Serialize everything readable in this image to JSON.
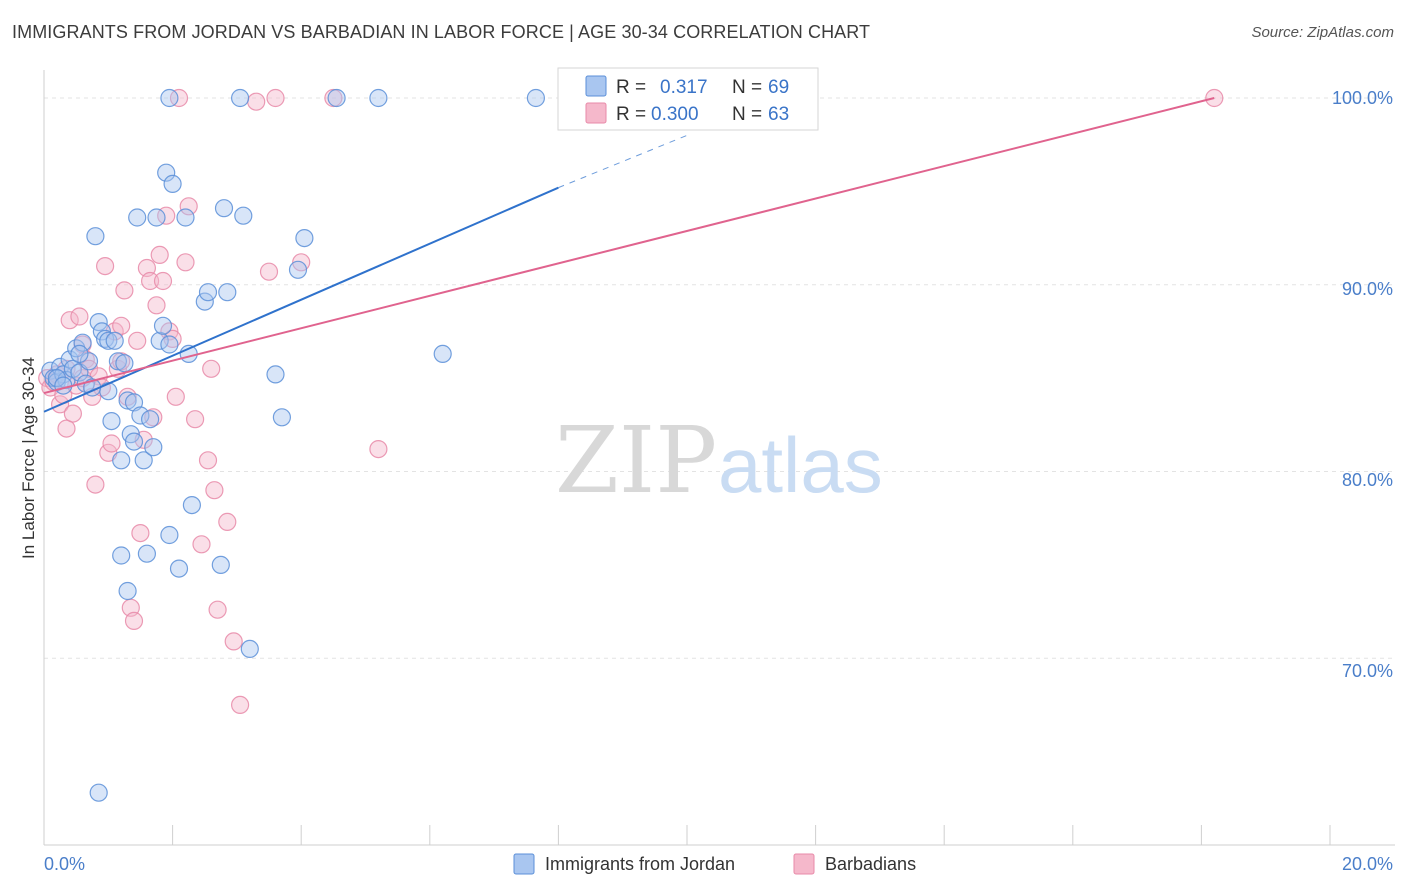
{
  "title": "IMMIGRANTS FROM JORDAN VS BARBADIAN IN LABOR FORCE | AGE 30-34 CORRELATION CHART",
  "source": "Source: ZipAtlas.com",
  "colors": {
    "blue_fill": "#a9c6f0",
    "blue_stroke": "#5b8fd8",
    "blue_line": "#2f72cc",
    "pink_fill": "#f5b8cb",
    "pink_stroke": "#e88aa8",
    "pink_line": "#e0638e",
    "grid": "#e3e3e3",
    "axis_text": "#4a7ec9"
  },
  "legend": {
    "r_label": "R =",
    "n_label": "N =",
    "series": [
      {
        "r": "0.317",
        "n": "69"
      },
      {
        "r": "0.300",
        "n": "63"
      }
    ]
  },
  "chart_data": {
    "type": "scatter",
    "title": "IMMIGRANTS FROM JORDAN VS BARBADIAN IN LABOR FORCE | AGE 30-34 CORRELATION CHART",
    "xlabel": "",
    "ylabel": "In Labor Force | Age 30-34",
    "xlim": [
      0,
      20
    ],
    "ylim": [
      60.0,
      101.5
    ],
    "x_tick_labels": [
      "0.0%",
      "20.0%"
    ],
    "y_ticks": [
      70,
      80,
      90,
      100
    ],
    "y_tick_labels": [
      "70.0%",
      "80.0%",
      "90.0%",
      "100.0%"
    ],
    "grid": true,
    "watermark": {
      "a": "ZIP",
      "b": "atlas"
    },
    "series": [
      {
        "name": "Immigrants from Jordan",
        "r": 0.317,
        "n": 69,
        "trend": {
          "x0": 0.0,
          "y0": 83.2,
          "x1": 8.0,
          "y1": 95.2,
          "dash_to_x": 10.0,
          "dash_to_y": 98.0
        },
        "points": [
          [
            0.1,
            85.4
          ],
          [
            0.15,
            85.0
          ],
          [
            0.2,
            84.8
          ],
          [
            0.25,
            85.6
          ],
          [
            0.3,
            85.2
          ],
          [
            0.35,
            84.9
          ],
          [
            0.4,
            86.0
          ],
          [
            0.45,
            85.5
          ],
          [
            0.5,
            86.6
          ],
          [
            0.55,
            85.3
          ],
          [
            0.6,
            86.9
          ],
          [
            0.65,
            84.7
          ],
          [
            0.7,
            85.9
          ],
          [
            0.75,
            84.5
          ],
          [
            0.8,
            92.6
          ],
          [
            0.85,
            88.0
          ],
          [
            0.9,
            87.5
          ],
          [
            0.95,
            87.1
          ],
          [
            1.0,
            84.3
          ],
          [
            1.0,
            87.0
          ],
          [
            1.05,
            82.7
          ],
          [
            1.1,
            87.0
          ],
          [
            1.15,
            85.9
          ],
          [
            1.2,
            80.6
          ],
          [
            1.2,
            75.5
          ],
          [
            1.25,
            85.8
          ],
          [
            1.3,
            83.8
          ],
          [
            1.3,
            73.6
          ],
          [
            1.35,
            82.0
          ],
          [
            1.4,
            83.7
          ],
          [
            1.4,
            81.6
          ],
          [
            1.45,
            93.6
          ],
          [
            1.5,
            83.0
          ],
          [
            1.55,
            80.6
          ],
          [
            1.6,
            75.6
          ],
          [
            1.65,
            82.8
          ],
          [
            1.7,
            81.3
          ],
          [
            1.75,
            93.6
          ],
          [
            1.8,
            87.0
          ],
          [
            1.85,
            87.8
          ],
          [
            1.9,
            96.0
          ],
          [
            1.95,
            76.6
          ],
          [
            1.95,
            86.8
          ],
          [
            2.0,
            95.4
          ],
          [
            2.1,
            74.8
          ],
          [
            2.2,
            93.6
          ],
          [
            2.25,
            86.3
          ],
          [
            2.3,
            78.2
          ],
          [
            2.5,
            89.1
          ],
          [
            2.55,
            89.6
          ],
          [
            2.75,
            75.0
          ],
          [
            2.8,
            94.1
          ],
          [
            2.85,
            89.6
          ],
          [
            3.05,
            100.0
          ],
          [
            3.1,
            93.7
          ],
          [
            3.2,
            70.5
          ],
          [
            3.6,
            85.2
          ],
          [
            3.7,
            82.9
          ],
          [
            3.95,
            90.8
          ],
          [
            4.05,
            92.5
          ],
          [
            4.55,
            100.0
          ],
          [
            5.2,
            100.0
          ],
          [
            6.2,
            86.3
          ],
          [
            7.65,
            100.0
          ],
          [
            0.85,
            62.8
          ],
          [
            1.95,
            100.0
          ],
          [
            0.2,
            85.0
          ],
          [
            0.3,
            84.6
          ],
          [
            0.55,
            86.3
          ]
        ]
      },
      {
        "name": "Barbadians",
        "r": 0.3,
        "n": 63,
        "trend": {
          "x0": 0.0,
          "y0": 84.2,
          "x1": 18.2,
          "y1": 100.0
        },
        "points": [
          [
            0.05,
            85.0
          ],
          [
            0.1,
            84.5
          ],
          [
            0.15,
            84.8
          ],
          [
            0.2,
            85.2
          ],
          [
            0.25,
            83.6
          ],
          [
            0.3,
            84.1
          ],
          [
            0.35,
            82.3
          ],
          [
            0.4,
            88.1
          ],
          [
            0.45,
            83.1
          ],
          [
            0.5,
            84.6
          ],
          [
            0.55,
            88.3
          ],
          [
            0.6,
            85.0
          ],
          [
            0.65,
            86.0
          ],
          [
            0.7,
            85.5
          ],
          [
            0.75,
            84.0
          ],
          [
            0.8,
            79.3
          ],
          [
            0.85,
            85.1
          ],
          [
            0.9,
            84.5
          ],
          [
            0.95,
            91.0
          ],
          [
            1.0,
            81.0
          ],
          [
            1.05,
            81.5
          ],
          [
            1.1,
            87.5
          ],
          [
            1.15,
            85.5
          ],
          [
            1.2,
            87.8
          ],
          [
            1.25,
            89.7
          ],
          [
            1.3,
            84.0
          ],
          [
            1.35,
            72.7
          ],
          [
            1.4,
            72.0
          ],
          [
            1.45,
            87.0
          ],
          [
            1.5,
            76.7
          ],
          [
            1.55,
            81.7
          ],
          [
            1.6,
            90.9
          ],
          [
            1.65,
            90.2
          ],
          [
            1.7,
            82.9
          ],
          [
            1.75,
            88.9
          ],
          [
            1.8,
            91.6
          ],
          [
            1.85,
            90.2
          ],
          [
            1.9,
            93.7
          ],
          [
            1.95,
            87.5
          ],
          [
            2.0,
            87.1
          ],
          [
            2.05,
            84.0
          ],
          [
            2.2,
            91.2
          ],
          [
            2.25,
            94.2
          ],
          [
            2.35,
            82.8
          ],
          [
            2.45,
            76.1
          ],
          [
            2.55,
            80.6
          ],
          [
            2.6,
            85.5
          ],
          [
            2.65,
            79.0
          ],
          [
            2.7,
            72.6
          ],
          [
            2.85,
            77.3
          ],
          [
            2.95,
            70.9
          ],
          [
            3.05,
            67.5
          ],
          [
            3.3,
            99.8
          ],
          [
            3.5,
            90.7
          ],
          [
            3.6,
            100.0
          ],
          [
            4.0,
            91.2
          ],
          [
            4.5,
            100.0
          ],
          [
            5.2,
            81.2
          ],
          [
            18.2,
            100.0
          ],
          [
            2.1,
            100.0
          ],
          [
            0.6,
            86.8
          ],
          [
            1.2,
            85.9
          ],
          [
            0.35,
            85.5
          ]
        ]
      }
    ]
  }
}
